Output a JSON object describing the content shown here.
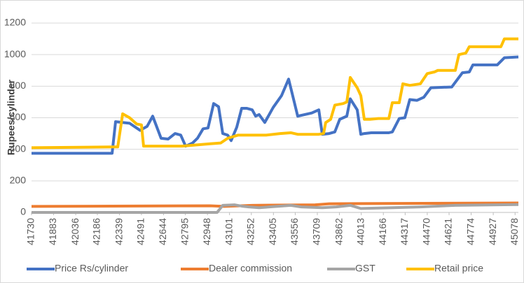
{
  "chart_data": {
    "type": "line",
    "y_label": "Rupees/cylinder",
    "xlim": [
      41730,
      45101
    ],
    "xticks": [
      41730,
      41883,
      42036,
      42186,
      42339,
      42491,
      42644,
      42795,
      42948,
      43101,
      43252,
      43405,
      43556,
      43709,
      43862,
      44013,
      44166,
      44317,
      44470,
      44621,
      44774,
      44927,
      45078
    ],
    "ylim": [
      0,
      1200
    ],
    "yticks": [
      0,
      200,
      400,
      600,
      800,
      1000,
      1200
    ],
    "grid": true,
    "legend": "bottom",
    "series": [
      {
        "name": "Price Rs/cylinder",
        "color": "#4472c4",
        "x": [
          41730,
          42288,
          42312,
          42409,
          42482,
          42530,
          42569,
          42627,
          42676,
          42724,
          42763,
          42797,
          42845,
          42879,
          42918,
          42952,
          42991,
          43025,
          43054,
          43088,
          43112,
          43151,
          43185,
          43219,
          43258,
          43282,
          43306,
          43345,
          43403,
          43461,
          43510,
          43549,
          43573,
          43622,
          43670,
          43719,
          43743,
          43791,
          43830,
          43864,
          43913,
          43937,
          43985,
          44010,
          44034,
          44082,
          44204,
          44228,
          44276,
          44315,
          44349,
          44398,
          44446,
          44495,
          44640,
          44713,
          44761,
          44786,
          44955,
          45004,
          45101
        ],
        "values": [
          375,
          375,
          575,
          565,
          520,
          545,
          610,
          470,
          465,
          500,
          490,
          420,
          440,
          470,
          530,
          535,
          690,
          670,
          500,
          490,
          455,
          540,
          660,
          660,
          650,
          610,
          620,
          570,
          665,
          740,
          845,
          700,
          610,
          620,
          630,
          650,
          495,
          500,
          510,
          590,
          610,
          720,
          650,
          495,
          500,
          505,
          505,
          510,
          595,
          600,
          715,
          710,
          730,
          790,
          795,
          885,
          890,
          935,
          935,
          980,
          985
        ]
      },
      {
        "name": "Dealer commission",
        "color": "#ed7d31",
        "x": [
          41730,
          42967,
          43064,
          43112,
          43258,
          43694,
          43791,
          45101
        ],
        "values": [
          38,
          42,
          38,
          40,
          45,
          48,
          55,
          60
        ]
      },
      {
        "name": "GST",
        "color": "#a5a5a5",
        "x": [
          41730,
          43015,
          43054,
          43137,
          43185,
          43234,
          43306,
          43452,
          43525,
          43597,
          43743,
          43840,
          43937,
          44010,
          44228,
          44422,
          44664,
          45101
        ],
        "values": [
          0,
          0,
          45,
          48,
          40,
          35,
          30,
          40,
          45,
          35,
          30,
          35,
          45,
          25,
          30,
          35,
          45,
          50
        ]
      },
      {
        "name": "Retail price",
        "color": "#ffc000",
        "x": [
          41730,
          42288,
          42327,
          42361,
          42409,
          42458,
          42491,
          42506,
          42773,
          42967,
          43040,
          43088,
          43161,
          43355,
          43452,
          43525,
          43573,
          43719,
          43752,
          43767,
          43801,
          43830,
          43888,
          43913,
          43937,
          43985,
          44010,
          44034,
          44073,
          44131,
          44204,
          44228,
          44276,
          44301,
          44349,
          44422,
          44470,
          44519,
          44543,
          44664,
          44689,
          44737,
          44761,
          44980,
          45004,
          45101
        ],
        "values": [
          410,
          415,
          415,
          625,
          600,
          560,
          555,
          420,
          420,
          435,
          440,
          470,
          490,
          490,
          500,
          505,
          495,
          495,
          500,
          570,
          590,
          680,
          690,
          700,
          855,
          790,
          740,
          590,
          590,
          595,
          595,
          695,
          695,
          815,
          805,
          815,
          880,
          890,
          900,
          900,
          1000,
          1010,
          1050,
          1050,
          1100,
          1100
        ]
      }
    ]
  }
}
